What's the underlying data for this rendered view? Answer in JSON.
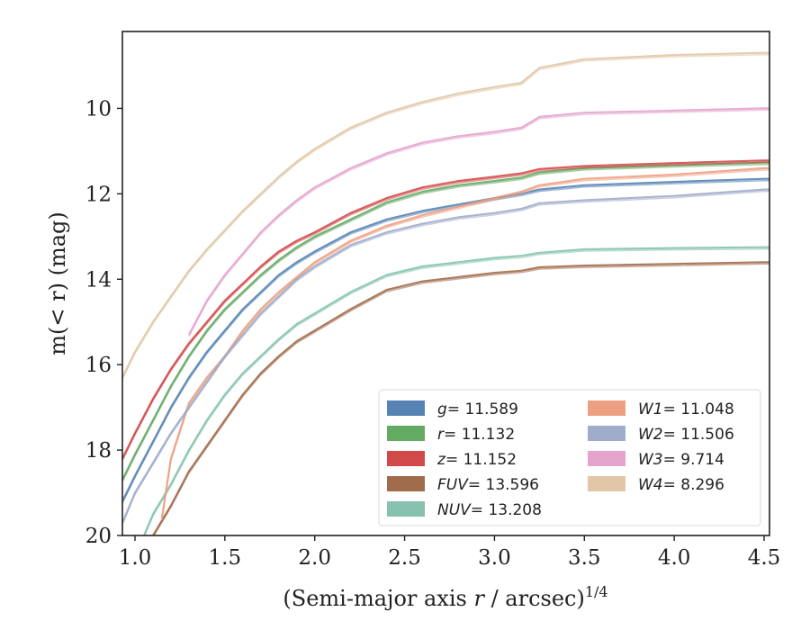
{
  "chart_data": {
    "type": "line",
    "xlabel": "(Semi-major axis r / arcsec)",
    "xlabel_italic_var": "r",
    "xlabel_sup": "1/4",
    "ylabel": "m(< r) (mag)",
    "xlim": [
      0.93,
      4.53
    ],
    "ylim": [
      20,
      8.2
    ],
    "y_inverted": true,
    "x_ticks": [
      1.0,
      1.5,
      2.0,
      2.5,
      3.0,
      3.5,
      4.0,
      4.5
    ],
    "x_tick_labels": [
      "1.0",
      "1.5",
      "2.0",
      "2.5",
      "3.0",
      "3.5",
      "4.0",
      "4.5"
    ],
    "y_ticks": [
      10,
      12,
      14,
      16,
      18,
      20
    ],
    "y_tick_labels": [
      "10",
      "12",
      "14",
      "16",
      "18",
      "20"
    ],
    "grid": false,
    "legend_position": "bottom-right",
    "series": [
      {
        "name": "g",
        "legend_value": "= 11.589",
        "color": "#4c7db0",
        "x": [
          0.93,
          1.0,
          1.1,
          1.2,
          1.3,
          1.4,
          1.5,
          1.6,
          1.7,
          1.8,
          1.9,
          2.0,
          2.2,
          2.4,
          2.6,
          2.8,
          3.0,
          3.15,
          3.25,
          3.5,
          4.0,
          4.5,
          4.53
        ],
        "y": [
          19.2,
          18.6,
          17.8,
          17.0,
          16.3,
          15.7,
          15.2,
          14.7,
          14.3,
          13.9,
          13.6,
          13.35,
          12.9,
          12.6,
          12.4,
          12.25,
          12.1,
          12.0,
          11.9,
          11.8,
          11.72,
          11.65,
          11.65
        ]
      },
      {
        "name": "r",
        "legend_value": "= 11.132",
        "color": "#5ba55a",
        "x": [
          0.93,
          1.0,
          1.1,
          1.2,
          1.3,
          1.4,
          1.5,
          1.6,
          1.7,
          1.8,
          1.9,
          2.0,
          2.2,
          2.4,
          2.6,
          2.8,
          3.0,
          3.15,
          3.25,
          3.5,
          4.0,
          4.5,
          4.53
        ],
        "y": [
          18.7,
          18.1,
          17.3,
          16.5,
          15.8,
          15.2,
          14.7,
          14.3,
          13.9,
          13.55,
          13.25,
          13.0,
          12.6,
          12.2,
          11.95,
          11.8,
          11.7,
          11.62,
          11.5,
          11.4,
          11.33,
          11.27,
          11.27
        ]
      },
      {
        "name": "z",
        "legend_value": "= 11.152",
        "color": "#d03f3f",
        "x": [
          0.93,
          1.0,
          1.1,
          1.2,
          1.3,
          1.4,
          1.5,
          1.6,
          1.7,
          1.8,
          1.9,
          2.0,
          2.2,
          2.4,
          2.6,
          2.8,
          3.0,
          3.15,
          3.25,
          3.5,
          4.0,
          4.5,
          4.53
        ],
        "y": [
          18.2,
          17.6,
          16.8,
          16.1,
          15.5,
          15.0,
          14.5,
          14.1,
          13.7,
          13.35,
          13.1,
          12.9,
          12.45,
          12.1,
          11.85,
          11.7,
          11.6,
          11.52,
          11.42,
          11.35,
          11.28,
          11.22,
          11.22
        ]
      },
      {
        "name": "FUV",
        "legend_value": "= 13.596",
        "color": "#9c6442",
        "x": [
          1.1,
          1.2,
          1.3,
          1.4,
          1.5,
          1.6,
          1.7,
          1.8,
          1.9,
          2.0,
          2.2,
          2.4,
          2.6,
          2.8,
          3.0,
          3.15,
          3.25,
          3.5,
          3.9,
          4.5,
          4.53
        ],
        "y": [
          20.0,
          19.3,
          18.5,
          17.9,
          17.3,
          16.7,
          16.2,
          15.8,
          15.45,
          15.2,
          14.7,
          14.25,
          14.05,
          13.95,
          13.85,
          13.8,
          13.72,
          13.68,
          13.65,
          13.6,
          13.6
        ]
      },
      {
        "name": "NUV",
        "legend_value": "= 13.208",
        "color": "#7fbfab",
        "x": [
          1.05,
          1.1,
          1.2,
          1.3,
          1.4,
          1.5,
          1.6,
          1.7,
          1.8,
          1.9,
          2.0,
          2.2,
          2.4,
          2.6,
          2.8,
          3.0,
          3.15,
          3.25,
          3.5,
          4.0,
          4.5,
          4.53
        ],
        "y": [
          20.0,
          19.5,
          18.8,
          18.0,
          17.3,
          16.7,
          16.2,
          15.8,
          15.4,
          15.05,
          14.8,
          14.3,
          13.9,
          13.7,
          13.6,
          13.5,
          13.45,
          13.38,
          13.3,
          13.27,
          13.25,
          13.25
        ]
      },
      {
        "name": "W1",
        "legend_value": "= 11.048",
        "color": "#ec9a7a",
        "x": [
          1.15,
          1.2,
          1.3,
          1.4,
          1.5,
          1.6,
          1.7,
          1.8,
          1.9,
          2.0,
          2.2,
          2.4,
          2.6,
          2.8,
          3.0,
          3.15,
          3.25,
          3.5,
          4.0,
          4.5,
          4.53
        ],
        "y": [
          19.6,
          18.2,
          16.9,
          16.3,
          15.8,
          15.2,
          14.7,
          14.3,
          13.95,
          13.6,
          13.1,
          12.75,
          12.5,
          12.3,
          12.1,
          11.95,
          11.8,
          11.65,
          11.55,
          11.4,
          11.4
        ]
      },
      {
        "name": "W2",
        "legend_value": "= 11.506",
        "color": "#9aa8c8",
        "x": [
          0.93,
          1.0,
          1.1,
          1.2,
          1.3,
          1.4,
          1.5,
          1.6,
          1.7,
          1.8,
          1.9,
          2.0,
          2.2,
          2.4,
          2.6,
          2.8,
          3.0,
          3.15,
          3.25,
          3.5,
          4.0,
          4.5,
          4.53
        ],
        "y": [
          19.7,
          19.0,
          18.3,
          17.6,
          17.0,
          16.4,
          15.8,
          15.3,
          14.8,
          14.4,
          14.0,
          13.7,
          13.2,
          12.9,
          12.7,
          12.55,
          12.45,
          12.35,
          12.22,
          12.15,
          12.05,
          11.9,
          11.9
        ]
      },
      {
        "name": "W3",
        "legend_value": "= 9.714",
        "color": "#e39fcb",
        "x": [
          1.3,
          1.4,
          1.5,
          1.6,
          1.7,
          1.8,
          1.9,
          2.0,
          2.2,
          2.4,
          2.6,
          2.8,
          3.0,
          3.15,
          3.25,
          3.5,
          4.0,
          4.5,
          4.53
        ],
        "y": [
          15.3,
          14.5,
          13.9,
          13.4,
          12.9,
          12.5,
          12.15,
          11.85,
          11.4,
          11.05,
          10.8,
          10.65,
          10.55,
          10.45,
          10.2,
          10.1,
          10.05,
          10.0,
          10.0
        ]
      },
      {
        "name": "W4",
        "legend_value": "= 8.296",
        "color": "#dfc4a2",
        "x": [
          0.93,
          1.0,
          1.1,
          1.2,
          1.3,
          1.4,
          1.5,
          1.6,
          1.7,
          1.8,
          1.9,
          2.0,
          2.2,
          2.4,
          2.6,
          2.8,
          3.0,
          3.15,
          3.25,
          3.5,
          4.0,
          4.5,
          4.53
        ],
        "y": [
          16.3,
          15.7,
          15.0,
          14.4,
          13.8,
          13.3,
          12.85,
          12.4,
          12.0,
          11.6,
          11.25,
          10.95,
          10.45,
          10.1,
          9.85,
          9.65,
          9.5,
          9.4,
          9.05,
          8.85,
          8.75,
          8.7,
          8.7
        ]
      }
    ]
  }
}
